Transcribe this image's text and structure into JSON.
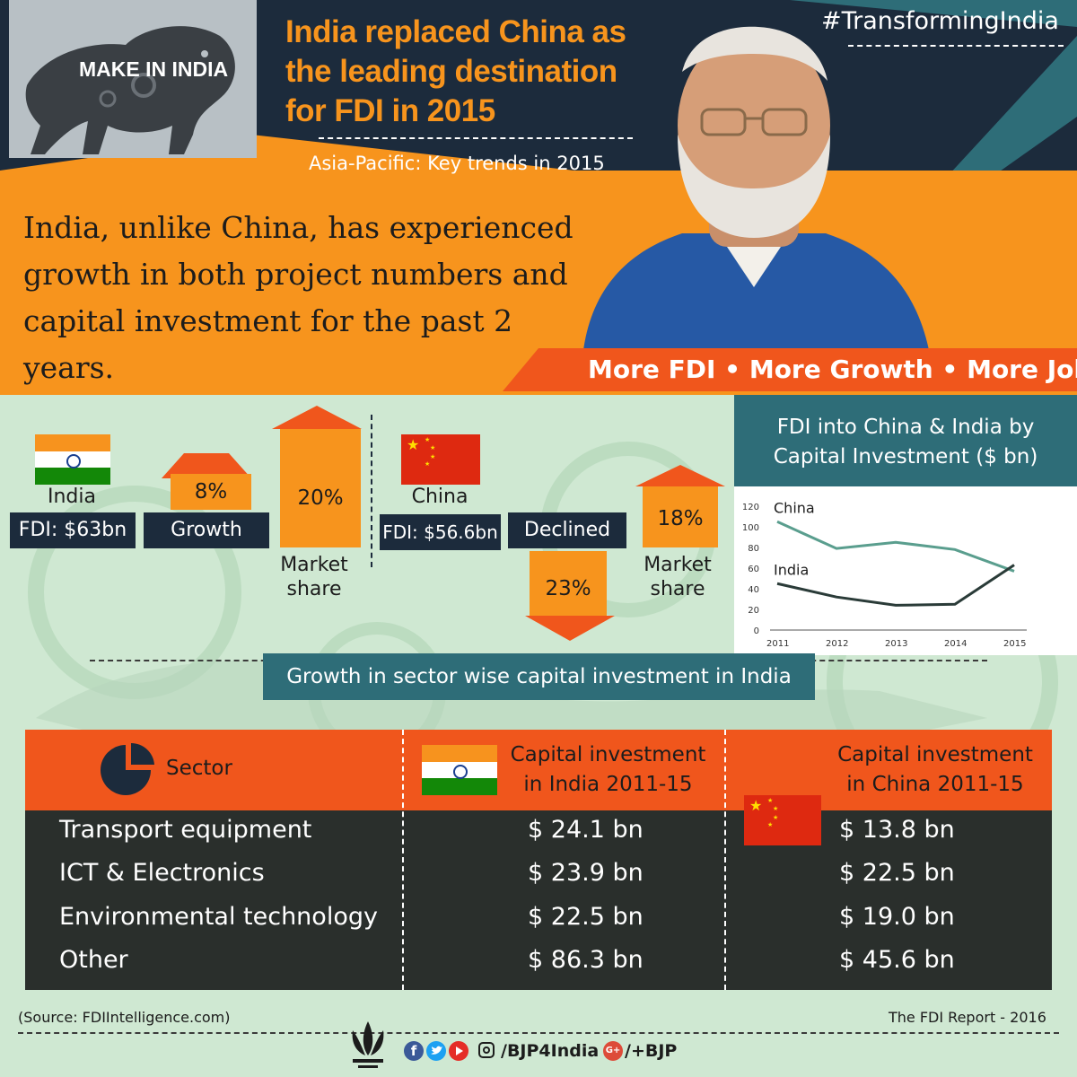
{
  "header": {
    "logo_text": "MAKE IN INDIA",
    "title": "India replaced China as the leading destination for FDI in 2015",
    "subtitle": "Asia-Pacific: Key trends in 2015",
    "hashtag": "#TransformingIndia",
    "tagline": "India, unlike China, has experienced growth in both project numbers and capital investment for the past 2 years.",
    "banner": "More FDI • More Growth • More Jobs"
  },
  "india": {
    "name": "India",
    "fdi": "FDI: $63bn",
    "growth_value": "8%",
    "growth_label": "Growth",
    "market_share_value": "20%",
    "market_share_label": "Market share"
  },
  "china": {
    "name": "China",
    "fdi": "FDI: $56.6bn",
    "declined_label": "Declined",
    "declined_value": "23%",
    "market_share_value": "18%",
    "market_share_label": "Market share"
  },
  "chart_data": {
    "type": "line",
    "title": "FDI into China & India by Capital Investment ($ bn)",
    "x": [
      "2011",
      "2012",
      "2013",
      "2014",
      "2015"
    ],
    "ylim": [
      0,
      120
    ],
    "yticks": [
      "0",
      "20",
      "40",
      "60",
      "80",
      "100",
      "120"
    ],
    "grid": false,
    "series": [
      {
        "name": "China",
        "values": [
          105,
          79,
          85,
          78,
          57
        ],
        "color": "#5a9e8e"
      },
      {
        "name": "India",
        "values": [
          45,
          32,
          24,
          25,
          63
        ],
        "color": "#2a3b38"
      }
    ]
  },
  "sector_section": {
    "title": "Growth in sector wise capital investment in India",
    "headers": {
      "sector": "Sector",
      "india": "Capital investment in India 2011-15",
      "china": "Capital investment in China 2011-15"
    },
    "rows": [
      {
        "sector": "Transport equipment",
        "india": "$ 24.1 bn",
        "china": "$ 13.8 bn"
      },
      {
        "sector": "ICT & Electronics",
        "india": "$ 23.9 bn",
        "china": "$ 22.5 bn"
      },
      {
        "sector": "Environmental technology",
        "india": "$ 22.5 bn",
        "china": "$ 19.0 bn"
      },
      {
        "sector": "Other",
        "india": "$ 86.3 bn",
        "china": "$ 45.6 bn"
      }
    ]
  },
  "footer": {
    "source": "(Source: FDIIntelligence.com)",
    "report": "The FDI Report - 2016",
    "social_handle": "/BJP4India",
    "gplus_handle": "/+BJP",
    "gplus_icon_text": "G+"
  },
  "colors": {
    "navy": "#1c2b3c",
    "orange": "#f7941d",
    "red_orange": "#f0561c",
    "teal": "#2e6d78",
    "mint": "#cfe8d2",
    "dark_table": "#2a2f2c"
  },
  "icons": [
    "lion-logo-icon",
    "portrait-image",
    "india-flag-icon",
    "china-flag-icon",
    "pie-chart-icon",
    "lotus-icon",
    "facebook-icon",
    "twitter-icon",
    "youtube-icon",
    "instagram-icon",
    "googleplus-icon"
  ]
}
